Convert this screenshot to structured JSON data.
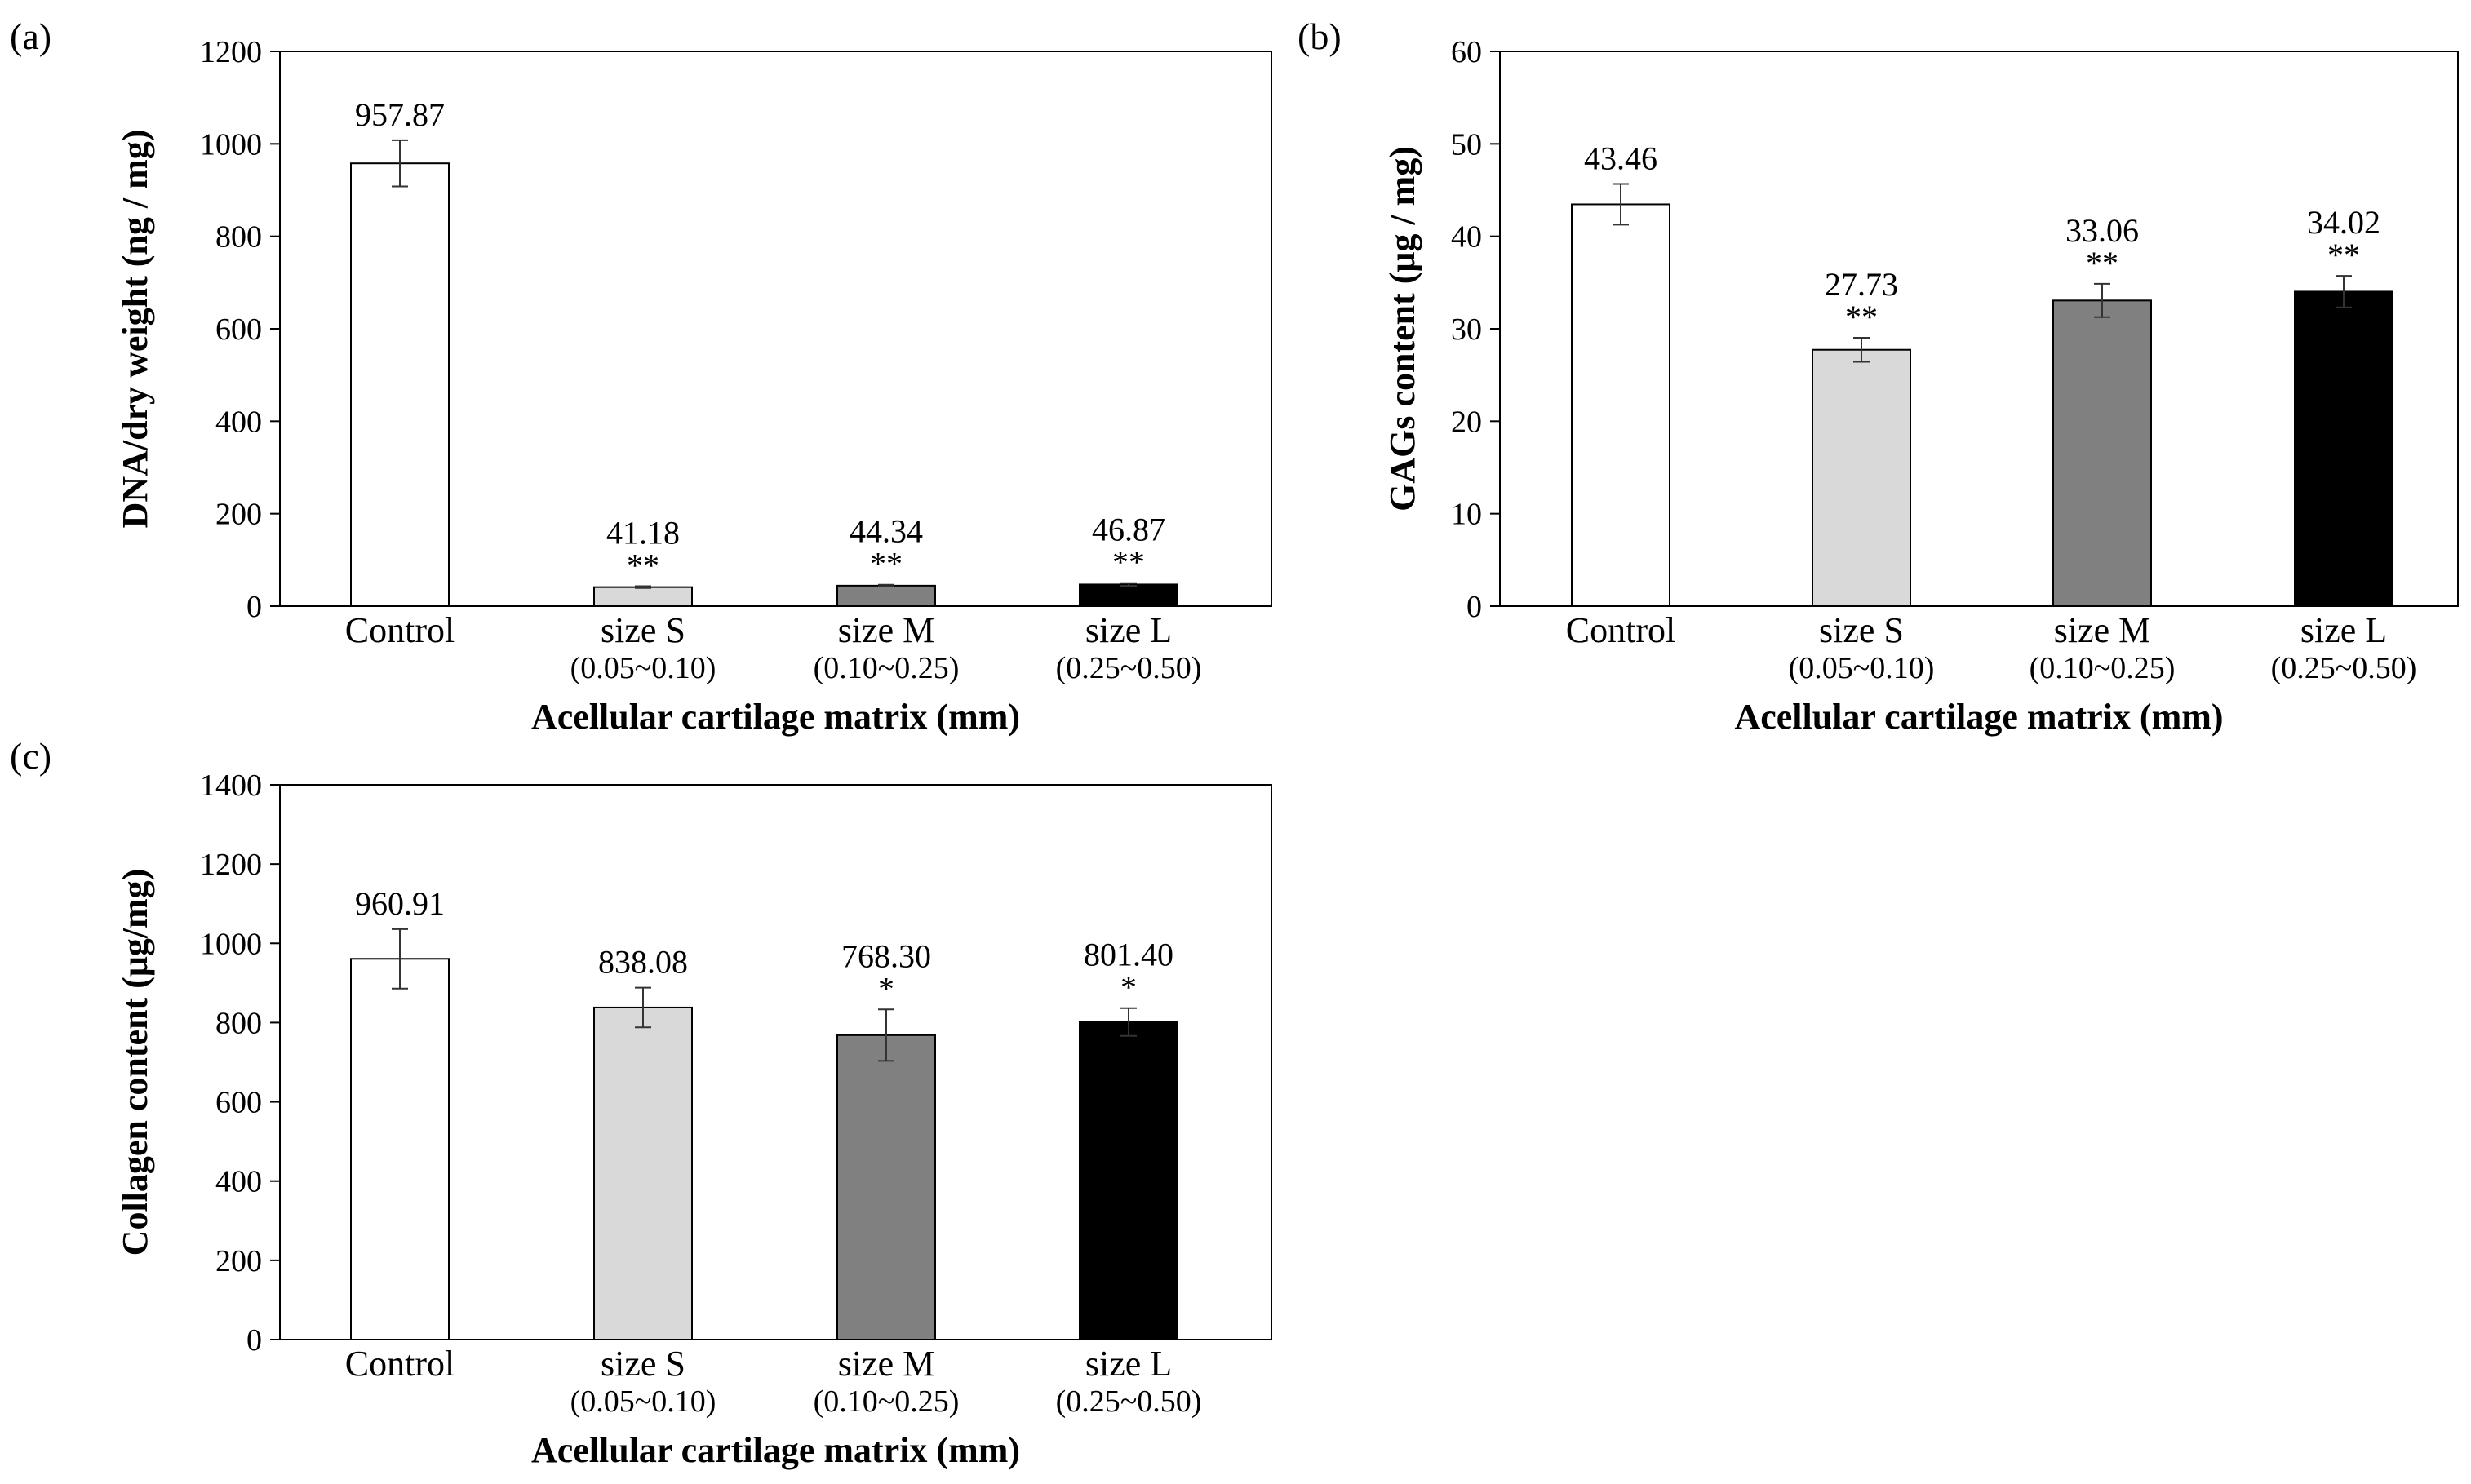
{
  "colors": {
    "control": "#ffffff",
    "size_s": "#d9d9d9",
    "size_m": "#808080",
    "size_l": "#000000",
    "stroke": "#000000"
  },
  "chart_data": [
    {
      "panel_label": "(a)",
      "type": "bar",
      "title": "",
      "ylabel": "DNA/dry weight (ng / mg)",
      "xlabel": "Acellular cartilage matrix (mm)",
      "ylim": [
        0,
        1200
      ],
      "yticks": [
        0,
        200,
        400,
        600,
        800,
        1000,
        1200
      ],
      "categories": [
        "Control",
        "size S",
        "size M",
        "size L"
      ],
      "category_ranges": [
        "",
        "(0.05~0.10)",
        "(0.10~0.25)",
        "(0.25~0.50)"
      ],
      "values": [
        957.87,
        41.18,
        44.34,
        46.87
      ],
      "value_labels": [
        "957.87",
        "41.18",
        "44.34",
        "46.87"
      ],
      "errors": [
        50,
        2,
        2,
        3
      ],
      "significance": [
        "",
        "**",
        "**",
        "**"
      ]
    },
    {
      "panel_label": "(b)",
      "type": "bar",
      "title": "",
      "ylabel": "GAGs content  (μg / mg)",
      "xlabel": "Acellular cartilage matrix (mm)",
      "ylim": [
        0,
        60
      ],
      "yticks": [
        0,
        10,
        20,
        30,
        40,
        50,
        60
      ],
      "categories": [
        "Control",
        "size S",
        "size M",
        "size L"
      ],
      "category_ranges": [
        "",
        "(0.05~0.10)",
        "(0.10~0.25)",
        "(0.25~0.50)"
      ],
      "values": [
        43.46,
        27.73,
        33.06,
        34.02
      ],
      "value_labels": [
        "43.46",
        "27.73",
        "33.06",
        "34.02"
      ],
      "errors": [
        2.2,
        1.3,
        1.8,
        1.7
      ],
      "significance": [
        "",
        "**",
        "**",
        "**"
      ]
    },
    {
      "panel_label": "(c)",
      "type": "bar",
      "title": "",
      "ylabel": "Collagen content (μg/mg)",
      "xlabel": "Acellular cartilage matrix (mm)",
      "ylim": [
        0,
        1400
      ],
      "yticks": [
        0,
        200,
        400,
        600,
        800,
        1000,
        1200,
        1400
      ],
      "categories": [
        "Control",
        "size S",
        "size M",
        "size L"
      ],
      "category_ranges": [
        "",
        "(0.05~0.10)",
        "(0.10~0.25)",
        "(0.25~0.50)"
      ],
      "values": [
        960.91,
        838.08,
        768.3,
        801.4
      ],
      "value_labels": [
        "960.91",
        "838.08",
        "768.30",
        "801.40"
      ],
      "errors": [
        75,
        50,
        65,
        35
      ],
      "significance": [
        "",
        "",
        "*",
        "*"
      ]
    }
  ]
}
